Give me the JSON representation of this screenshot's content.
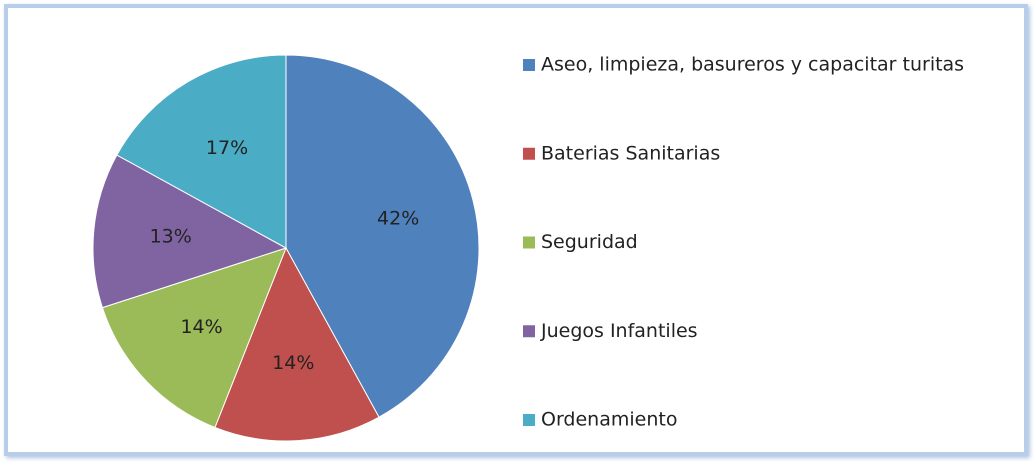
{
  "chart_data": {
    "type": "pie",
    "categories": [
      "Aseo, limpieza, basureros y capacitar turitas",
      "Baterias Sanitarias",
      "Seguridad",
      "Juegos Infantiles",
      "Ordenamiento"
    ],
    "values": [
      42,
      14,
      14,
      13,
      17
    ],
    "value_labels": [
      "42%",
      "14%",
      "14%",
      "13%",
      "17%"
    ],
    "colors": [
      "#4f81bd",
      "#c0504d",
      "#9bbb59",
      "#8064a2",
      "#4bacc6"
    ],
    "legend": "right"
  }
}
